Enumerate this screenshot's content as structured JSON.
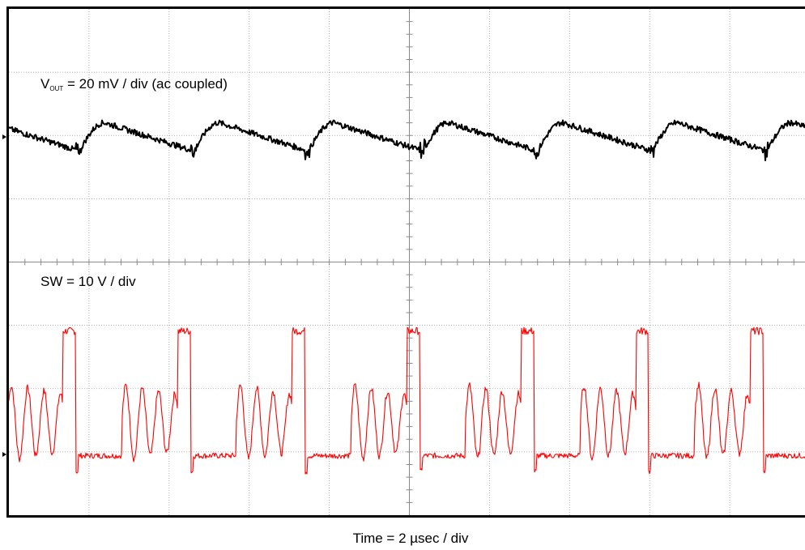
{
  "chart_data": {
    "type": "line",
    "title": "",
    "xlabel": "Time = 2 µsec / div",
    "x_divisions": 10,
    "y_divisions": 8,
    "grid": true,
    "series": [
      {
        "name_main": "V",
        "name_sub": "OUT",
        "label_rest": " = 20 mV / div (ac coupled)",
        "color": "#000000",
        "units_per_div": "20 mV",
        "ripple_period_us": 2.86,
        "ripple_peak_to_peak_mV": 9
      },
      {
        "name": "SW = 10 V / div",
        "color": "#ff0000",
        "units_per_div": "10 V",
        "switching_period_us": 2.86,
        "pulse_width_us": 0.32,
        "high_level_V": 19.5,
        "low_level_V": -0.2,
        "ringing_amplitude_V": 6
      }
    ]
  }
}
